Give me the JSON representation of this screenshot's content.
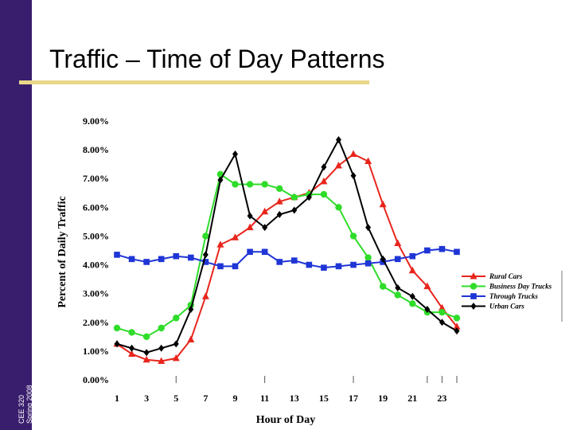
{
  "slide": {
    "title": "Traffic – Time of Day Patterns",
    "course": "CEE 320",
    "term": "Spring 2008",
    "accent_color": "#e8d78a",
    "sidebar_color": "#3a1e6e"
  },
  "chart_data": {
    "type": "line",
    "title": "",
    "xlabel": "Hour of Day",
    "ylabel": "Percent of Daily Traffic",
    "x": [
      1,
      2,
      3,
      4,
      5,
      6,
      7,
      8,
      9,
      10,
      11,
      12,
      13,
      14,
      15,
      16,
      17,
      18,
      19,
      20,
      21,
      22,
      23,
      24
    ],
    "xticks": [
      1,
      3,
      5,
      7,
      9,
      11,
      13,
      15,
      17,
      19,
      21,
      23
    ],
    "xtick_labels": [
      "1",
      "3",
      "5",
      "7",
      "9",
      "11",
      "13",
      "15",
      "17",
      "19",
      "21",
      "23"
    ],
    "ylim": [
      0,
      9
    ],
    "yticks": [
      0,
      1,
      2,
      3,
      4,
      5,
      6,
      7,
      8,
      9
    ],
    "ytick_labels": [
      "0.00%",
      "1.00%",
      "2.00%",
      "3.00%",
      "4.00%",
      "5.00%",
      "6.00%",
      "7.00%",
      "8.00%",
      "9.00%"
    ],
    "legend_position": "right",
    "grid": false,
    "series": [
      {
        "name": "Rural Cars",
        "color": "#e8251c",
        "marker": "triangle",
        "values": [
          1.25,
          0.9,
          0.7,
          0.65,
          0.75,
          1.4,
          2.9,
          4.7,
          4.95,
          5.3,
          5.85,
          6.2,
          6.35,
          6.5,
          6.9,
          7.45,
          7.85,
          7.6,
          6.1,
          4.75,
          3.8,
          3.25,
          2.5,
          1.85
        ]
      },
      {
        "name": "Business Day Trucks",
        "color": "#2fdc2a",
        "marker": "circle",
        "values": [
          1.8,
          1.65,
          1.5,
          1.8,
          2.15,
          2.6,
          5.0,
          7.15,
          6.8,
          6.8,
          6.8,
          6.65,
          6.35,
          6.45,
          6.45,
          6.0,
          5.0,
          4.25,
          3.25,
          2.95,
          2.65,
          2.35,
          2.35,
          2.15
        ]
      },
      {
        "name": "Through Trucks",
        "color": "#1f35d6",
        "marker": "square",
        "values": [
          4.35,
          4.2,
          4.1,
          4.2,
          4.3,
          4.25,
          4.1,
          3.95,
          3.95,
          4.45,
          4.45,
          4.1,
          4.15,
          4.0,
          3.9,
          3.95,
          4.0,
          4.05,
          4.1,
          4.2,
          4.3,
          4.5,
          4.55,
          4.45
        ]
      },
      {
        "name": "Urban Cars",
        "color": "#000000",
        "marker": "diamond",
        "values": [
          1.25,
          1.1,
          0.95,
          1.1,
          1.25,
          2.45,
          4.35,
          6.95,
          7.85,
          5.7,
          5.3,
          5.75,
          5.9,
          6.35,
          7.4,
          8.35,
          7.1,
          5.3,
          4.2,
          3.2,
          2.9,
          2.45,
          2.0,
          1.7
        ]
      }
    ]
  }
}
